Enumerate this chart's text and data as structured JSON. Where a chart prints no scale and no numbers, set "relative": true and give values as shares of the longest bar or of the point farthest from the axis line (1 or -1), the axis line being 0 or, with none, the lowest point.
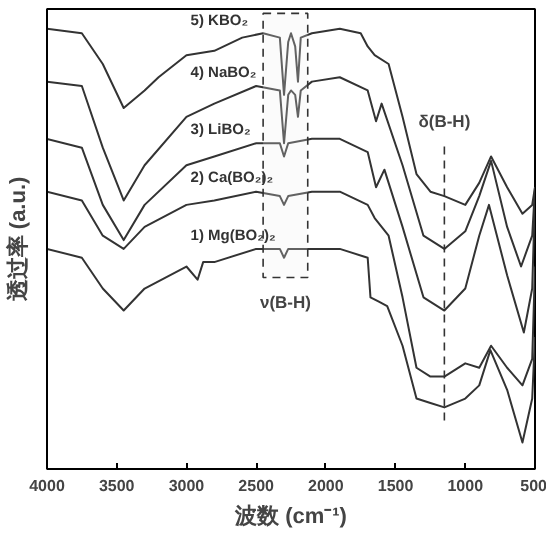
{
  "chart_data": {
    "type": "line",
    "relative": true,
    "xlabel": "波数 (cm⁻¹)",
    "ylabel": "透过率 (a.u.)",
    "xlim": [
      4000,
      500
    ],
    "xticks": [
      4000,
      3500,
      3000,
      2500,
      2000,
      1500,
      1000,
      500
    ],
    "tick_labels": "x",
    "grid": false,
    "legend": false,
    "marker": "none",
    "line_style": "solid",
    "series": [
      {
        "name": "5) KBO₂",
        "color": "#333333",
        "x": [
          4000,
          3750,
          3600,
          3450,
          3300,
          3200,
          3000,
          2800,
          2600,
          2450,
          2330,
          2300,
          2270,
          2250,
          2220,
          2200,
          2180,
          2100,
          1900,
          1750,
          1700,
          1650,
          1550,
          1450,
          1350,
          1250,
          1150,
          1000,
          900,
          815,
          700,
          590,
          520,
          500
        ],
        "values": [
          1.0,
          0.99,
          0.92,
          0.82,
          0.86,
          0.89,
          0.94,
          0.95,
          0.98,
          0.99,
          0.98,
          0.85,
          0.97,
          0.99,
          0.96,
          0.88,
          0.98,
          0.99,
          1.0,
          0.99,
          0.96,
          0.94,
          0.92,
          0.8,
          0.67,
          0.63,
          0.62,
          0.6,
          0.65,
          0.71,
          0.64,
          0.58,
          0.6,
          0.64
        ]
      },
      {
        "name": "4) NaBO₂",
        "color": "#333333",
        "x": [
          4000,
          3750,
          3600,
          3450,
          3300,
          3000,
          2800,
          2500,
          2330,
          2300,
          2270,
          2250,
          2220,
          2200,
          2180,
          2100,
          1900,
          1700,
          1640,
          1600,
          1450,
          1300,
          1150,
          1000,
          900,
          815,
          700,
          600,
          520,
          500
        ],
        "values": [
          0.88,
          0.87,
          0.73,
          0.61,
          0.69,
          0.8,
          0.83,
          0.87,
          0.86,
          0.74,
          0.85,
          0.86,
          0.85,
          0.8,
          0.86,
          0.88,
          0.89,
          0.86,
          0.79,
          0.83,
          0.69,
          0.53,
          0.5,
          0.54,
          0.62,
          0.7,
          0.55,
          0.46,
          0.53,
          0.64
        ]
      },
      {
        "name": "3) LiBO₂",
        "color": "#333333",
        "x": [
          4000,
          3750,
          3600,
          3450,
          3300,
          3000,
          2800,
          2500,
          2330,
          2300,
          2270,
          2100,
          1900,
          1700,
          1640,
          1580,
          1450,
          1300,
          1150,
          1000,
          900,
          830,
          700,
          580,
          520,
          500
        ],
        "values": [
          0.75,
          0.73,
          0.6,
          0.52,
          0.6,
          0.69,
          0.71,
          0.74,
          0.74,
          0.71,
          0.74,
          0.75,
          0.75,
          0.72,
          0.64,
          0.68,
          0.55,
          0.39,
          0.36,
          0.41,
          0.53,
          0.6,
          0.44,
          0.31,
          0.41,
          0.62
        ]
      },
      {
        "name": "2) Ca(BO₂)₂",
        "color": "#333333",
        "x": [
          4000,
          3750,
          3600,
          3450,
          3300,
          3000,
          2800,
          2500,
          2330,
          2300,
          2270,
          2100,
          1900,
          1700,
          1650,
          1550,
          1450,
          1350,
          1250,
          1150,
          1000,
          900,
          815,
          700,
          590,
          520,
          500
        ],
        "values": [
          0.63,
          0.61,
          0.53,
          0.5,
          0.55,
          0.6,
          0.61,
          0.63,
          0.62,
          0.6,
          0.62,
          0.63,
          0.63,
          0.6,
          0.57,
          0.53,
          0.39,
          0.23,
          0.21,
          0.21,
          0.24,
          0.23,
          0.28,
          0.23,
          0.19,
          0.25,
          0.46
        ]
      },
      {
        "name": "1) Mg(BO₂)₂",
        "color": "#333333",
        "x": [
          4000,
          3750,
          3600,
          3450,
          3300,
          3000,
          2920,
          2880,
          2800,
          2500,
          2330,
          2300,
          2270,
          2100,
          1900,
          1700,
          1680,
          1620,
          1560,
          1450,
          1350,
          1250,
          1150,
          1000,
          900,
          820,
          700,
          590,
          520,
          500
        ],
        "values": [
          0.5,
          0.48,
          0.41,
          0.36,
          0.41,
          0.46,
          0.43,
          0.47,
          0.47,
          0.5,
          0.5,
          0.48,
          0.5,
          0.5,
          0.5,
          0.48,
          0.39,
          0.38,
          0.37,
          0.28,
          0.16,
          0.15,
          0.14,
          0.16,
          0.19,
          0.27,
          0.18,
          0.06,
          0.16,
          0.3
        ]
      }
    ],
    "bands": [
      {
        "axis": "x",
        "from": 2450,
        "to": 2130,
        "label": "ν(B-H)"
      }
    ],
    "ref_lines": [
      {
        "axis": "x",
        "value": 1150,
        "label": "δ(B-H)",
        "line_style": "dashed"
      }
    ]
  }
}
